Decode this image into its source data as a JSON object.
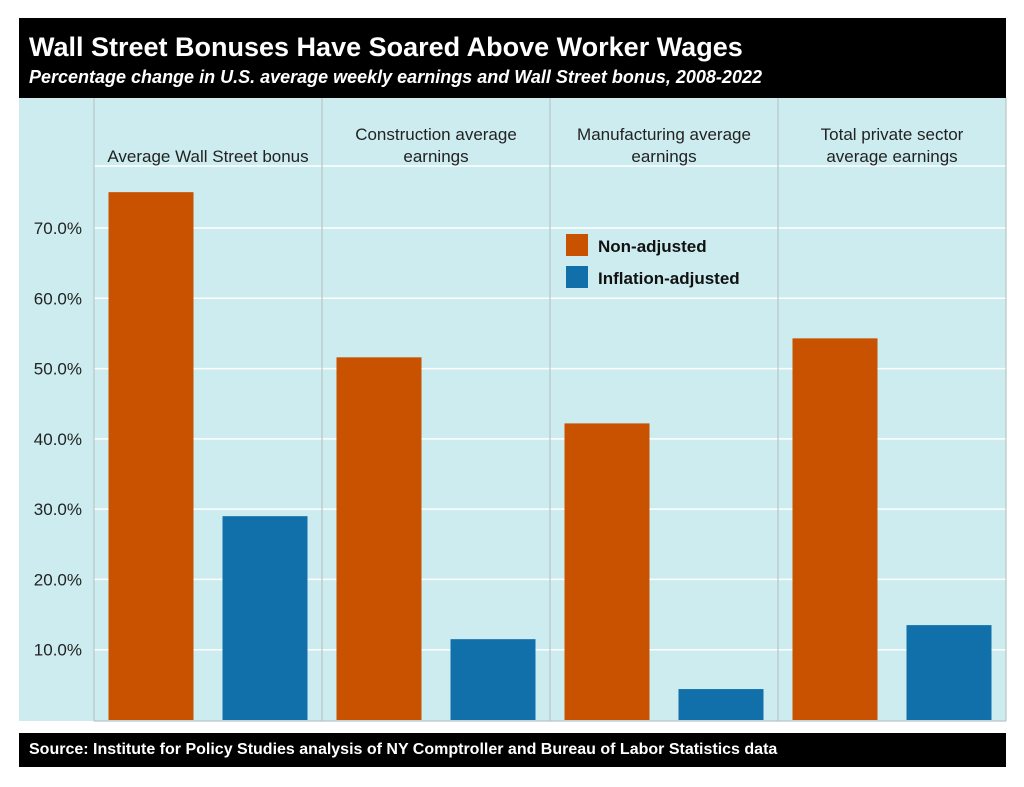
{
  "header": {
    "title": "Wall Street Bonuses Have Soared Above Worker Wages",
    "subtitle": "Percentage change in U.S. average weekly earnings and Wall Street bonus, 2008-2022"
  },
  "footer": {
    "source": "Source: Institute for Policy Studies analysis of NY Comptroller and Bureau of Labor Statistics data"
  },
  "colors": {
    "non_adjusted": "#c85200",
    "inflation_adjusted": "#1170aa",
    "panel_background": "#cdecef"
  },
  "chart_data": {
    "type": "bar",
    "title": "Wall Street Bonuses Have Soared Above Worker Wages",
    "subtitle": "Percentage change in U.S. average weekly earnings and Wall Street bonus, 2008-2022",
    "categories": [
      [
        "Average Wall Street bonus"
      ],
      [
        "Construction average",
        "earnings"
      ],
      [
        "Manufacturing average",
        "earnings"
      ],
      [
        "Total private sector",
        "average earnings"
      ]
    ],
    "series": [
      {
        "name": "Non-adjusted",
        "color": "#c85200",
        "values": [
          75.1,
          51.6,
          42.2,
          54.3
        ]
      },
      {
        "name": "Inflation-adjusted",
        "color": "#1170aa",
        "values": [
          29.0,
          11.5,
          4.4,
          13.5
        ]
      }
    ],
    "yticks": [
      10,
      20,
      30,
      40,
      50,
      60,
      70
    ],
    "ytick_labels": [
      "10.0%",
      "20.0%",
      "30.0%",
      "40.0%",
      "50.0%",
      "60.0%",
      "70.0%"
    ],
    "ylim": [
      0,
      82.5
    ],
    "xlabel": "",
    "ylabel": "",
    "grid": true,
    "legend_position": "inside third panel, top-left"
  }
}
